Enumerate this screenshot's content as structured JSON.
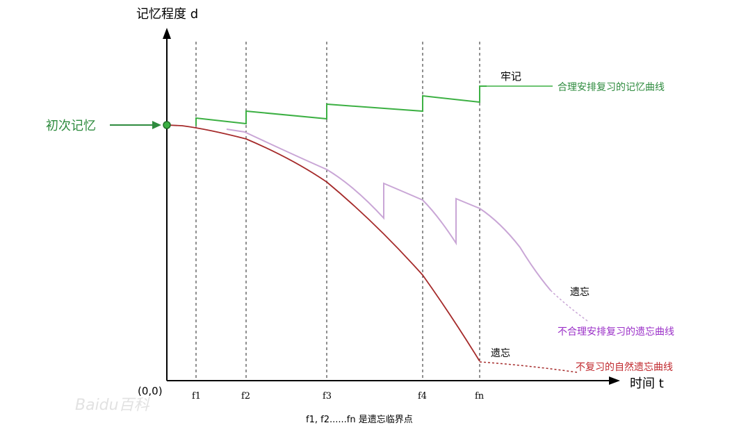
{
  "axes": {
    "y_label": "记忆程度 d",
    "x_label": "时间 t",
    "origin": "(0,0)"
  },
  "ticks": [
    "f1",
    "f2",
    "f3",
    "f4",
    "fn"
  ],
  "caption": "f1, f2......fn 是遗忘临界点",
  "labels": {
    "initial_memory": "初次记忆",
    "firm_memory": "牢记",
    "reasonable_curve": "合理安排复习的记忆曲线",
    "forget_1": "遗忘",
    "unreasonable_curve": "不合理安排复习的遗忘曲线",
    "forget_2": "遗忘",
    "natural_curve": "不复习的自然遗忘曲线"
  },
  "watermark": "Baidu百科",
  "colors": {
    "reasonable": "#3cb043",
    "unreasonable": "#c9a6d6",
    "unreasonable_label": "#9b30c8",
    "natural": "#a52a2a",
    "natural_label": "#c0282d",
    "axis": "#000000",
    "label_green": "#2e8b3e"
  }
}
